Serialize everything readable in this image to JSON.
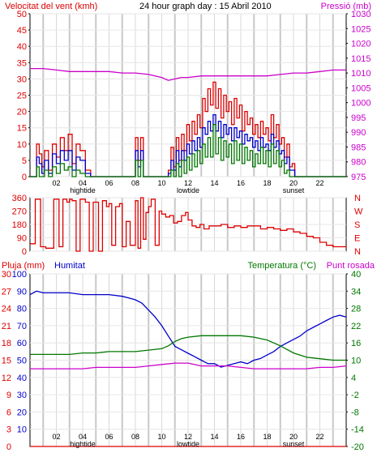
{
  "chart_data": [
    {
      "type": "line",
      "title": "24 hour graph day : 15 Abril 2010",
      "left_axis_label": "Velocitat del vent (kmh)",
      "right_axis_label": "Pressió (mb)",
      "x_ticks": [
        "02",
        "04",
        "06",
        "08",
        "10",
        "12",
        "14",
        "16",
        "18",
        "20",
        "22"
      ],
      "sub_labels": [
        "hightide",
        "lowtide",
        "sunset"
      ],
      "ylim_left": [
        0,
        50
      ],
      "ylim_right": [
        975,
        1030
      ],
      "left_ticks": [
        0,
        5,
        10,
        15,
        20,
        25,
        30,
        35,
        40,
        45,
        50
      ],
      "right_ticks": [
        975,
        980,
        985,
        990,
        995,
        1000,
        1005,
        1010,
        1015,
        1020,
        1025,
        1030
      ],
      "series": [
        {
          "name": "gust",
          "axis": "left",
          "color": "#dd0000",
          "x": [
            0.0,
            0.3,
            0.5,
            0.7,
            0.9,
            1.1,
            1.4,
            1.7,
            2.0,
            2.3,
            2.6,
            2.9,
            3.2,
            3.5,
            3.8,
            4.2,
            4.6,
            5.0,
            5.5,
            6.0,
            6.5,
            7.0,
            7.5,
            7.8,
            8.0,
            8.2,
            8.4,
            8.6,
            8.8,
            9.0,
            9.3,
            9.6,
            10.0,
            10.3,
            10.5,
            10.7,
            10.9,
            11.1,
            11.3,
            11.5,
            11.7,
            11.9,
            12.1,
            12.3,
            12.5,
            12.7,
            12.9,
            13.1,
            13.3,
            13.5,
            13.7,
            13.9,
            14.1,
            14.3,
            14.5,
            14.7,
            14.9,
            15.1,
            15.3,
            15.5,
            15.7,
            15.9,
            16.1,
            16.3,
            16.5,
            16.7,
            16.9,
            17.1,
            17.3,
            17.5,
            17.7,
            17.9,
            18.1,
            18.3,
            18.5,
            18.7,
            18.9,
            19.1,
            19.3,
            19.5,
            19.7,
            19.9,
            20.1,
            20.4,
            21.0,
            22.0,
            23.0,
            24.0
          ],
          "values": [
            0,
            0,
            10,
            7,
            3,
            8,
            2,
            10,
            6,
            12,
            8,
            13,
            4,
            10,
            8,
            2,
            0,
            0,
            0,
            0,
            0,
            0,
            0,
            0,
            12,
            5,
            12,
            0,
            0,
            0,
            0,
            0,
            0,
            0,
            2,
            9,
            3,
            12,
            5,
            13,
            8,
            16,
            11,
            17,
            13,
            19,
            15,
            24,
            20,
            27,
            22,
            29,
            21,
            27,
            18,
            25,
            20,
            23,
            16,
            24,
            18,
            22,
            14,
            20,
            16,
            18,
            13,
            16,
            12,
            17,
            13,
            15,
            11,
            19,
            12,
            16,
            10,
            12,
            6,
            10,
            3,
            4,
            0,
            0,
            0,
            0,
            0,
            0
          ]
        },
        {
          "name": "mean",
          "axis": "left",
          "color": "#0000cc",
          "x": [
            0.0,
            0.3,
            0.5,
            0.7,
            0.9,
            1.1,
            1.4,
            1.7,
            2.0,
            2.3,
            2.6,
            2.9,
            3.2,
            3.5,
            3.8,
            4.2,
            4.6,
            5.0,
            6.0,
            7.0,
            7.8,
            8.0,
            8.2,
            8.4,
            8.6,
            8.8,
            9.0,
            10.0,
            10.5,
            10.7,
            10.9,
            11.1,
            11.3,
            11.5,
            11.7,
            11.9,
            12.1,
            12.3,
            12.5,
            12.7,
            12.9,
            13.1,
            13.3,
            13.5,
            13.7,
            13.9,
            14.1,
            14.3,
            14.5,
            14.7,
            14.9,
            15.1,
            15.3,
            15.5,
            15.7,
            15.9,
            16.1,
            16.3,
            16.5,
            16.7,
            16.9,
            17.1,
            17.3,
            17.5,
            17.7,
            17.9,
            18.1,
            18.3,
            18.5,
            18.7,
            18.9,
            19.1,
            19.3,
            19.5,
            19.7,
            19.9,
            20.1,
            20.4,
            21.0,
            22.0,
            23.0,
            24.0
          ],
          "values": [
            0,
            0,
            6,
            4,
            1,
            5,
            1,
            7,
            4,
            8,
            5,
            8,
            2,
            6,
            5,
            1,
            0,
            0,
            0,
            0,
            0,
            8,
            3,
            8,
            0,
            0,
            0,
            0,
            1,
            5,
            2,
            8,
            3,
            8,
            5,
            10,
            7,
            11,
            8,
            12,
            9,
            15,
            13,
            17,
            14,
            19,
            14,
            17,
            12,
            16,
            13,
            15,
            11,
            15,
            12,
            14,
            10,
            13,
            11,
            12,
            9,
            11,
            8,
            12,
            9,
            10,
            8,
            13,
            9,
            11,
            7,
            8,
            4,
            6,
            2,
            2,
            0,
            0,
            0,
            0,
            0,
            0
          ]
        },
        {
          "name": "min",
          "axis": "left",
          "color": "#007700",
          "x": [
            0.0,
            0.3,
            0.5,
            0.7,
            0.9,
            1.1,
            1.4,
            1.7,
            2.0,
            2.3,
            2.6,
            2.9,
            3.2,
            3.5,
            3.8,
            4.2,
            5.0,
            6.0,
            7.0,
            8.0,
            8.2,
            8.4,
            8.6,
            9.0,
            10.0,
            10.7,
            10.9,
            11.1,
            11.3,
            11.5,
            11.7,
            11.9,
            12.1,
            12.3,
            12.5,
            12.7,
            12.9,
            13.1,
            13.3,
            13.5,
            13.7,
            13.9,
            14.1,
            14.3,
            14.5,
            14.7,
            14.9,
            15.1,
            15.3,
            15.5,
            15.7,
            15.9,
            16.1,
            16.3,
            16.5,
            16.7,
            16.9,
            17.1,
            17.3,
            17.5,
            17.7,
            17.9,
            18.1,
            18.3,
            18.5,
            18.7,
            18.9,
            19.1,
            19.3,
            19.5,
            19.7,
            20.0,
            21.0,
            22.0,
            23.0,
            24.0
          ],
          "values": [
            0,
            0,
            3,
            0,
            0,
            2,
            0,
            3,
            1,
            4,
            2,
            3,
            0,
            2,
            1,
            0,
            0,
            0,
            0,
            5,
            0,
            5,
            0,
            0,
            0,
            2,
            0,
            4,
            0,
            5,
            1,
            6,
            2,
            7,
            3,
            8,
            4,
            10,
            6,
            12,
            6,
            16,
            7,
            12,
            5,
            11,
            6,
            10,
            4,
            11,
            5,
            10,
            4,
            9,
            5,
            8,
            3,
            7,
            4,
            9,
            4,
            8,
            3,
            10,
            4,
            8,
            3,
            5,
            1,
            2,
            0,
            0,
            0,
            0,
            0,
            0
          ]
        },
        {
          "name": "pressure",
          "axis": "right",
          "color": "#cc00cc",
          "x": [
            0,
            1,
            2,
            3,
            4,
            5,
            6,
            7,
            8,
            9,
            10,
            10.5,
            11,
            11.5,
            12,
            13,
            14,
            15,
            16,
            17,
            18,
            19,
            20,
            21,
            22,
            23,
            23.5,
            24
          ],
          "values": [
            1011.5,
            1011.5,
            1011,
            1010.5,
            1010.5,
            1010.5,
            1010.5,
            1010,
            1010,
            1009.5,
            1008.5,
            1007.5,
            1008,
            1008.5,
            1008.5,
            1009,
            1009,
            1009,
            1009,
            1009,
            1009,
            1009.5,
            1010,
            1010,
            1010.5,
            1011,
            1011,
            1011
          ]
        }
      ]
    },
    {
      "type": "line",
      "left_ticks": [
        0,
        90,
        180,
        270,
        360
      ],
      "right_labels": [
        "N",
        "W",
        "S",
        "E",
        "N"
      ],
      "ylim": [
        0,
        360
      ],
      "series": [
        {
          "name": "direction",
          "color": "#dd0000",
          "x": [
            0.0,
            0.3,
            0.4,
            0.6,
            0.8,
            1.0,
            1.2,
            1.5,
            1.8,
            2.0,
            2.2,
            2.5,
            2.8,
            3.0,
            3.2,
            3.5,
            3.8,
            4.2,
            4.5,
            4.8,
            5.2,
            5.5,
            5.8,
            6.0,
            6.2,
            6.5,
            6.8,
            7.0,
            7.3,
            7.6,
            8.0,
            8.2,
            8.4,
            8.6,
            8.8,
            9.0,
            9.2,
            9.5,
            9.8,
            10.0,
            10.3,
            10.6,
            10.9,
            11.2,
            11.5,
            11.8,
            12.0,
            12.3,
            12.6,
            12.9,
            13.2,
            13.6,
            14.0,
            14.5,
            15.0,
            15.5,
            16.0,
            16.5,
            17.0,
            17.5,
            18.0,
            18.5,
            19.0,
            19.5,
            20.0,
            20.5,
            21.0,
            21.5,
            22.0,
            22.5,
            23.0,
            23.5,
            24.0
          ],
          "values": [
            50,
            50,
            350,
            350,
            30,
            30,
            20,
            20,
            350,
            350,
            30,
            350,
            330,
            350,
            340,
            0,
            350,
            330,
            0,
            330,
            0,
            340,
            300,
            320,
            40,
            300,
            320,
            30,
            200,
            40,
            340,
            20,
            360,
            80,
            260,
            300,
            350,
            40,
            270,
            250,
            230,
            240,
            190,
            200,
            240,
            260,
            210,
            170,
            160,
            180,
            150,
            170,
            170,
            180,
            160,
            170,
            160,
            170,
            170,
            150,
            160,
            150,
            140,
            150,
            130,
            120,
            100,
            90,
            60,
            40,
            30,
            30,
            20
          ]
        }
      ]
    },
    {
      "type": "line",
      "left_label_1": "Pluja (mm)",
      "left_label_2": "Humitat",
      "right_label_1": "Temperatura (°C)",
      "right_label_2": "Punt rosada",
      "rain_ticks": [
        0,
        3,
        6,
        9,
        12,
        15,
        18,
        21,
        24,
        27,
        30
      ],
      "humidity_ticks": [
        10,
        20,
        30,
        40,
        50,
        60,
        70,
        80,
        90,
        100
      ],
      "temp_ticks": [
        -20,
        -14,
        -8,
        -2,
        4,
        10,
        16,
        22,
        28,
        34,
        40
      ],
      "x_ticks": [
        "02",
        "04",
        "06",
        "08",
        "10",
        "12",
        "14",
        "16",
        "18",
        "20",
        "22"
      ],
      "sub_labels": [
        "hightide",
        "lowtide",
        "sunset"
      ],
      "ylim_rain": [
        0,
        30
      ],
      "ylim_temp": [
        -20,
        40
      ],
      "series": [
        {
          "name": "humidity",
          "axis": "humidity",
          "color": "#0000cc",
          "x": [
            0,
            0.5,
            1,
            2,
            3,
            4,
            5,
            6,
            7,
            7.5,
            8,
            8.5,
            9,
            9.5,
            10,
            10.5,
            11,
            11.5,
            12,
            12.5,
            13,
            13.5,
            14,
            14.5,
            15,
            15.5,
            16,
            16.5,
            17,
            17.5,
            18,
            18.5,
            19,
            19.5,
            20,
            20.5,
            21,
            21.5,
            22,
            22.5,
            23,
            23.5,
            24
          ],
          "values": [
            88,
            90,
            89,
            89,
            89,
            88,
            88,
            88,
            87,
            86,
            85,
            83,
            79,
            75,
            70,
            64,
            58,
            56,
            54,
            52,
            50,
            48,
            48,
            46,
            47,
            48,
            49,
            48,
            50,
            51,
            53,
            55,
            58,
            60,
            62,
            64,
            67,
            69,
            71,
            73,
            75,
            76,
            75
          ]
        },
        {
          "name": "temperature",
          "axis": "temp",
          "color": "#007700",
          "x": [
            0,
            1,
            2,
            3,
            4,
            5,
            6,
            7,
            8,
            9,
            10,
            10.5,
            11,
            11.5,
            12,
            13,
            14,
            15,
            16,
            17,
            18,
            19,
            20,
            21,
            22,
            23,
            24
          ],
          "values": [
            12,
            12,
            12,
            12,
            12.5,
            12.5,
            13,
            13,
            13,
            13.5,
            14,
            15,
            16.5,
            17.5,
            18,
            18.5,
            18.5,
            18.5,
            18.5,
            18,
            17,
            15,
            12.5,
            11,
            10.5,
            10,
            10
          ]
        },
        {
          "name": "dewpoint",
          "axis": "temp",
          "color": "#cc00cc",
          "x": [
            0,
            1,
            2,
            3,
            4,
            5,
            6,
            7,
            8,
            9,
            10,
            11,
            12,
            13,
            14,
            15,
            16,
            17,
            18,
            19,
            20,
            21,
            22,
            23,
            24
          ],
          "values": [
            7,
            7,
            7,
            7,
            7,
            7.5,
            7.5,
            7.5,
            7.5,
            8,
            8.5,
            9,
            9,
            8,
            8,
            8,
            7.5,
            7,
            7,
            7,
            7,
            7,
            7.5,
            7.5,
            8
          ]
        },
        {
          "name": "rain",
          "axis": "rain",
          "color": "#dd0000",
          "x": [
            0,
            24
          ],
          "values": [
            0,
            0
          ]
        }
      ]
    }
  ]
}
